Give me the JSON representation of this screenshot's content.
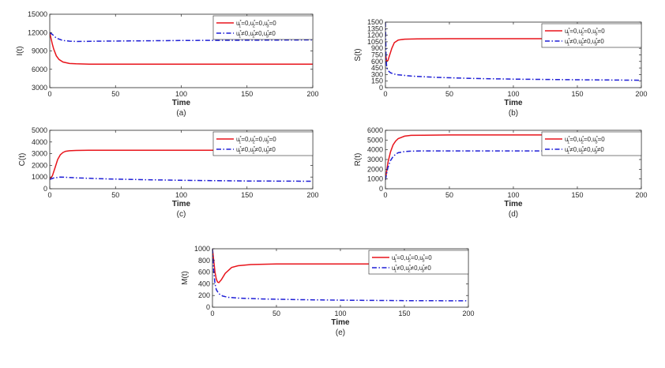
{
  "chart_data": [
    {
      "type": "line",
      "caption": "(a)",
      "xlabel": "Time",
      "ylabel": "I(t)",
      "xlim": [
        0,
        200
      ],
      "ylim": [
        3000,
        15000
      ],
      "xticks": [
        "0",
        "50",
        "100",
        "150",
        "200"
      ],
      "yticks": [
        "3000",
        "6000",
        "9000",
        "12000",
        "15000"
      ],
      "legend_position": "top-right",
      "series": [
        {
          "name": "u1*=0,u2*=0,u3*=0",
          "color": "#e8141b",
          "dash": "solid",
          "x": [
            0,
            1,
            2,
            3,
            5,
            7,
            10,
            15,
            20,
            30,
            50,
            100,
            200
          ],
          "y": [
            12000,
            11000,
            10100,
            9300,
            8200,
            7600,
            7200,
            6950,
            6900,
            6850,
            6850,
            6850,
            6850
          ]
        },
        {
          "name": "u1*≠0,u2*≠0,u3*≠0",
          "color": "#1f1fd6",
          "dash": "dashdot",
          "x": [
            0,
            2,
            5,
            10,
            15,
            20,
            40,
            100,
            200
          ],
          "y": [
            12000,
            11700,
            11100,
            10700,
            10600,
            10550,
            10600,
            10700,
            10800
          ]
        }
      ]
    },
    {
      "type": "line",
      "caption": "(b)",
      "xlabel": "Time",
      "ylabel": "S(t)",
      "xlim": [
        0,
        200
      ],
      "ylim": [
        0,
        1500
      ],
      "xticks": [
        "0",
        "50",
        "100",
        "150",
        "200"
      ],
      "yticks": [
        "0",
        "150",
        "300",
        "450",
        "600",
        "750",
        "900",
        "1050",
        "1200",
        "1350",
        "1500"
      ],
      "legend_position": "top-right",
      "series": [
        {
          "name": "u1*=0,u2*=0,u3*=0",
          "color": "#e8141b",
          "dash": "solid",
          "x": [
            0,
            1,
            2,
            3,
            5,
            7,
            10,
            15,
            25,
            50,
            100,
            200
          ],
          "y": [
            800,
            600,
            620,
            720,
            900,
            1030,
            1090,
            1110,
            1115,
            1120,
            1120,
            1120
          ]
        },
        {
          "name": "u1*≠0,u2*≠0,u3*≠0",
          "color": "#1f1fd6",
          "dash": "dashdot",
          "x": [
            0,
            0.5,
            1,
            2,
            4,
            7,
            10,
            20,
            40,
            70,
            100,
            150,
            200
          ],
          "y": [
            1500,
            700,
            470,
            390,
            340,
            310,
            295,
            265,
            235,
            210,
            195,
            180,
            170
          ]
        }
      ]
    },
    {
      "type": "line",
      "caption": "(c)",
      "xlabel": "Time",
      "ylabel": "C(t)",
      "xlim": [
        0,
        200
      ],
      "ylim": [
        0,
        5000
      ],
      "xticks": [
        "0",
        "50",
        "100",
        "150",
        "200"
      ],
      "yticks": [
        "0",
        "1000",
        "2000",
        "3000",
        "4000",
        "5000"
      ],
      "legend_position": "top-right",
      "series": [
        {
          "name": "u1*=0,u2*=0,u3*=0",
          "color": "#e8141b",
          "dash": "solid",
          "x": [
            0,
            2,
            4,
            6,
            8,
            10,
            12,
            15,
            20,
            30,
            50,
            100,
            200
          ],
          "y": [
            800,
            1100,
            1800,
            2500,
            2900,
            3100,
            3200,
            3250,
            3280,
            3300,
            3300,
            3300,
            3300
          ]
        },
        {
          "name": "u1*≠0,u2*≠0,u3*≠0",
          "color": "#1f1fd6",
          "dash": "dashdot",
          "x": [
            0,
            3,
            8,
            12,
            20,
            40,
            70,
            100,
            150,
            200
          ],
          "y": [
            800,
            920,
            1000,
            980,
            930,
            850,
            780,
            720,
            660,
            640
          ]
        }
      ]
    },
    {
      "type": "line",
      "caption": "(d)",
      "xlabel": "Time",
      "ylabel": "R(t)",
      "xlim": [
        0,
        200
      ],
      "ylim": [
        0,
        6000
      ],
      "xticks": [
        "0",
        "50",
        "100",
        "150",
        "200"
      ],
      "yticks": [
        "0",
        "1000",
        "2000",
        "3000",
        "4000",
        "5000",
        "6000"
      ],
      "legend_position": "top-right",
      "series": [
        {
          "name": "u1*=0,u2*=0,u3*=0",
          "color": "#e8141b",
          "dash": "solid",
          "x": [
            0,
            1,
            2,
            4,
            6,
            8,
            10,
            15,
            20,
            30,
            50,
            100,
            200
          ],
          "y": [
            900,
            1800,
            2700,
            3800,
            4500,
            4900,
            5150,
            5400,
            5480,
            5500,
            5520,
            5520,
            5520
          ]
        },
        {
          "name": "u1*≠0,u2*≠0,u3*≠0",
          "color": "#1f1fd6",
          "dash": "dashdot",
          "x": [
            0,
            1,
            2,
            4,
            6,
            8,
            10,
            15,
            20,
            30,
            50,
            100,
            195,
            200
          ],
          "y": [
            900,
            1600,
            2200,
            2900,
            3300,
            3550,
            3700,
            3820,
            3860,
            3880,
            3880,
            3880,
            3880,
            4000
          ]
        }
      ]
    },
    {
      "type": "line",
      "caption": "(e)",
      "xlabel": "Time",
      "ylabel": "M(t)",
      "xlim": [
        0,
        200
      ],
      "ylim": [
        0,
        1000
      ],
      "xticks": [
        "0",
        "50",
        "100",
        "150",
        "200"
      ],
      "yticks": [
        "0",
        "200",
        "400",
        "600",
        "800",
        "1000"
      ],
      "legend_position": "top-right",
      "series": [
        {
          "name": "u1*=0,u2*=0,u3*=0",
          "color": "#e8141b",
          "dash": "solid",
          "x": [
            0,
            1,
            2,
            3,
            4,
            5,
            7,
            10,
            15,
            20,
            30,
            50,
            100,
            200
          ],
          "y": [
            1000,
            800,
            600,
            480,
            430,
            420,
            470,
            580,
            680,
            710,
            730,
            740,
            740,
            740
          ]
        },
        {
          "name": "u1*≠0,u2*≠0,u3*≠0",
          "color": "#1f1fd6",
          "dash": "dashdot",
          "x": [
            0,
            1,
            2,
            3,
            5,
            8,
            12,
            20,
            40,
            70,
            100,
            150,
            200
          ],
          "y": [
            1000,
            620,
            400,
            300,
            230,
            190,
            170,
            155,
            140,
            128,
            120,
            112,
            110
          ]
        }
      ]
    }
  ]
}
